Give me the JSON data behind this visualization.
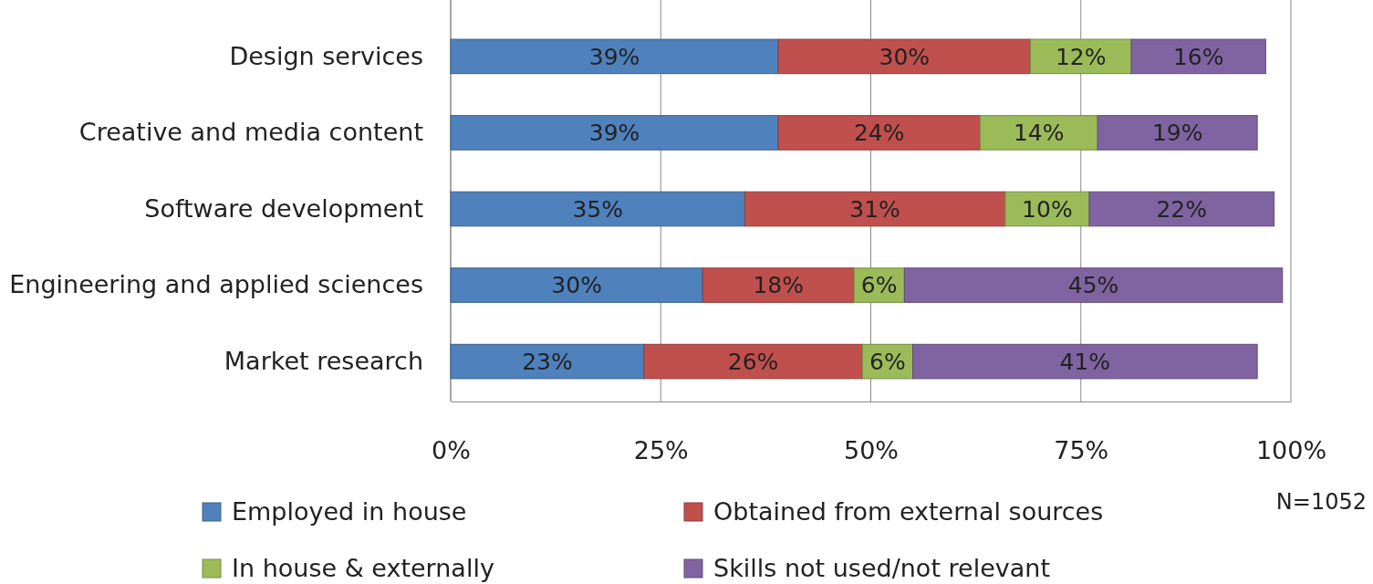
{
  "chart_data": {
    "type": "bar",
    "orientation": "horizontal",
    "stacked": true,
    "categories": [
      "Design services",
      "Creative and media content",
      "Software development",
      "Engineering and applied sciences",
      "Market research"
    ],
    "series": [
      {
        "name": "Employed in house",
        "color": "#4f81bd",
        "values": [
          39,
          39,
          35,
          30,
          23
        ]
      },
      {
        "name": "Obtained from external sources",
        "color": "#c0504d",
        "values": [
          30,
          24,
          31,
          18,
          26
        ]
      },
      {
        "name": "In house & externally",
        "color": "#9bbb59",
        "values": [
          12,
          14,
          10,
          6,
          6
        ]
      },
      {
        "name": "Skills not used/not relevant",
        "color": "#8064a2",
        "values": [
          16,
          19,
          22,
          45,
          41
        ]
      }
    ],
    "xlim": [
      0,
      100
    ],
    "xticks": [
      {
        "value": 0,
        "label": "0%"
      },
      {
        "value": 25,
        "label": "25%"
      },
      {
        "value": 50,
        "label": "50%"
      },
      {
        "value": 75,
        "label": "75%"
      },
      {
        "value": 100,
        "label": "100%"
      }
    ],
    "grid": "x",
    "legend": "bottom",
    "value_labels": [
      [
        "39%",
        "39%",
        "35%",
        "30%",
        "23%"
      ],
      [
        "30%",
        "24%",
        "31%",
        "18%",
        "26%"
      ],
      [
        "12%",
        "14%",
        "10%",
        "6%",
        "6%"
      ],
      [
        "16%",
        "19%",
        "22%",
        "45%",
        "41%"
      ]
    ],
    "annotations": [
      "N=1052"
    ]
  }
}
